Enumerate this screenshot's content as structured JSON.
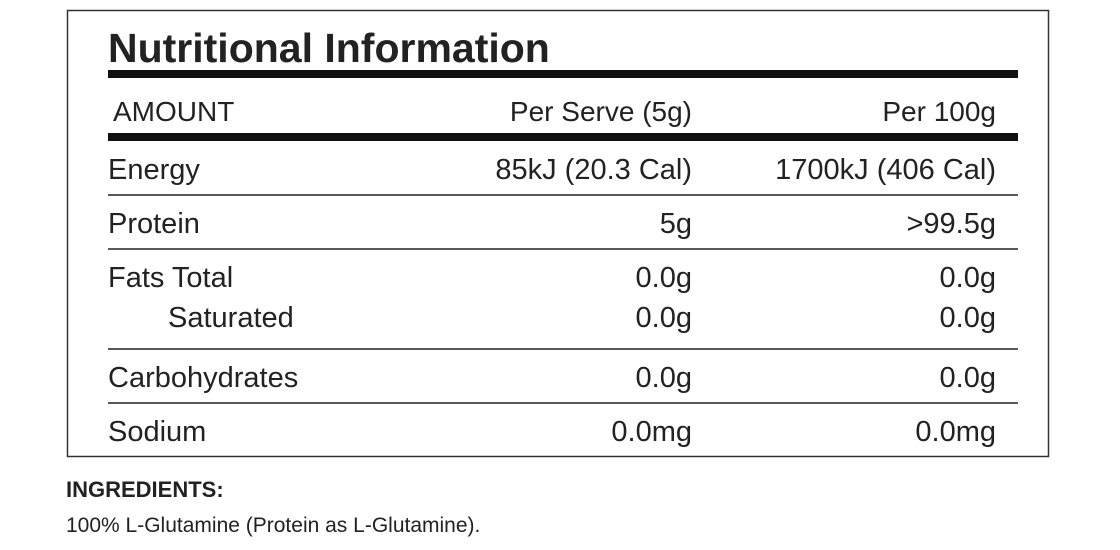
{
  "title": "Nutritional Information",
  "table": {
    "header": [
      "AMOUNT",
      "Per Serve (5g)",
      "Per 100g"
    ],
    "groups": [
      [
        [
          "Energy",
          "85kJ (20.3 Cal)",
          "1700kJ (406 Cal)"
        ]
      ],
      [
        [
          "Protein",
          "5g",
          ">99.5g"
        ]
      ],
      [
        [
          "Fats Total",
          "0.0g",
          "0.0g"
        ],
        [
          "Saturated",
          "0.0g",
          "0.0g"
        ]
      ],
      [
        [
          "Carbohydrates",
          "0.0g",
          "0.0g"
        ]
      ],
      [
        [
          "Sodium",
          "0.0mg",
          "0.0mg"
        ]
      ]
    ]
  },
  "ingredients": {
    "heading": "INGREDIENTS:",
    "text": "100% L-Glutamine (Protein as L-Glutamine)."
  }
}
